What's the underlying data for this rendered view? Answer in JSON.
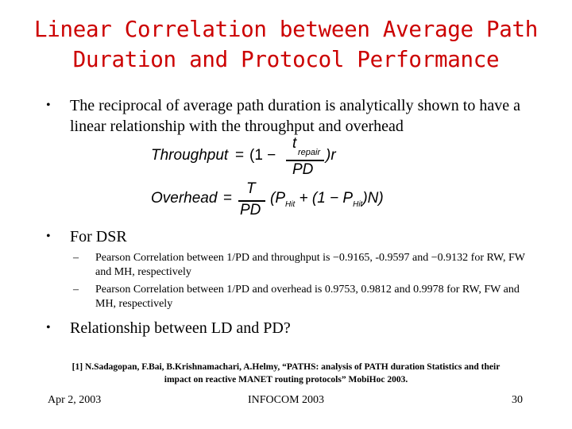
{
  "slide": {
    "title_line1": "Linear Correlation between Average Path",
    "title_line2": "Duration and Protocol Performance",
    "bullets": [
      {
        "marker": "•",
        "text": "The reciprocal of average path duration is analytically shown to have a linear relationship with the throughput and overhead"
      },
      {
        "marker": "•",
        "text": "For DSR"
      },
      {
        "marker": "•",
        "text": "Relationship between LD and PD?"
      }
    ],
    "sub_bullets": [
      {
        "marker": "–",
        "text": "Pearson Correlation between 1/PD and throughput is −0.9165, -0.9597 and −0.9132 for RW, FW and MH, respectively"
      },
      {
        "marker": "–",
        "text": "Pearson Correlation between 1/PD and overhead is 0.9753, 0.9812 and 0.9978 for RW, FW and MH, respectively"
      }
    ],
    "equations": {
      "throughput": {
        "lhs": "Throughput",
        "eq": "=",
        "open": "(1 −",
        "num_t": "t",
        "num_sub": "repair",
        "den": "PD",
        "close": ")r"
      },
      "overhead": {
        "lhs": "Overhead",
        "eq": "=",
        "num": "T",
        "den": "PD",
        "rest_1": "(P",
        "sub_1": "Hit",
        "rest_2": " + (1 − P",
        "sub_2": "Hit",
        "rest_3": ")N)"
      }
    },
    "reference_line1": "[1] N.Sadagopan, F.Bai, B.Krishnamachari, A.Helmy, “PATHS: analysis of PATH duration Statistics and their",
    "reference_line2": "impact on reactive MANET routing protocols” MobiHoc 2003.",
    "footer": {
      "date": "Apr 2, 2003",
      "conference": "INFOCOM 2003",
      "page": "30"
    }
  }
}
